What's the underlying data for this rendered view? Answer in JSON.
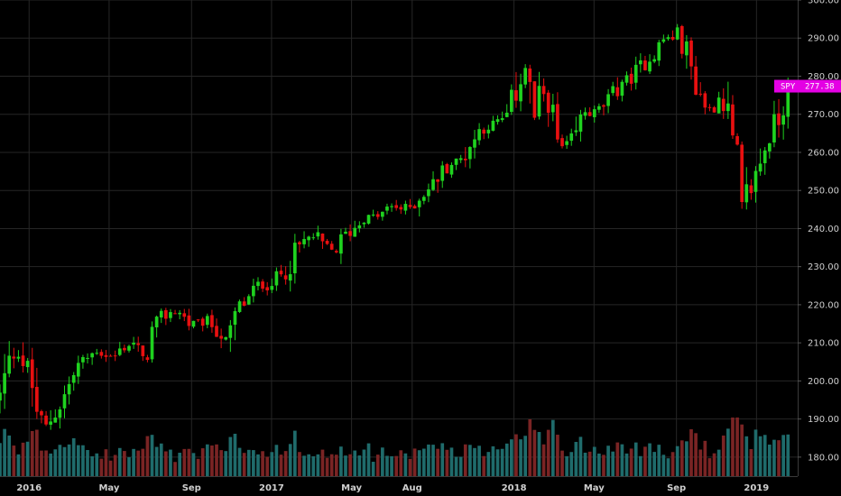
{
  "chart_data": {
    "type": "candlestick",
    "title": "",
    "ylabel": "",
    "xlabel": "",
    "ylim": [
      175,
      300
    ],
    "xlim": [
      2015.88,
      2019.17
    ],
    "grid": true,
    "y_ticks": [
      180,
      190,
      200,
      210,
      220,
      230,
      240,
      250,
      260,
      270,
      280,
      290,
      300
    ],
    "y_tick_labels": [
      "180.00",
      "190.00",
      "200.00",
      "210.00",
      "220.00",
      "230.00",
      "240.00",
      "250.00",
      "260.00",
      "270.00",
      "280.00",
      "290.00",
      "300.00"
    ],
    "x_ticks": [
      {
        "label": "2016",
        "x": 2016.0
      },
      {
        "label": "May",
        "x": 2016.33
      },
      {
        "label": "Sep",
        "x": 2016.67
      },
      {
        "label": "2017",
        "x": 2017.0
      },
      {
        "label": "May",
        "x": 2017.33
      },
      {
        "label": "Aug",
        "x": 2017.58
      },
      {
        "label": "2018",
        "x": 2018.0
      },
      {
        "label": "May",
        "x": 2018.33
      },
      {
        "label": "Sep",
        "x": 2018.67
      },
      {
        "label": "2019",
        "x": 2019.0
      }
    ],
    "price_tag": {
      "symbol": "SPY",
      "value": "277.38",
      "price": 277.38,
      "color": "#e400e4"
    },
    "up_color": "#1fd21f",
    "down_color": "#e81010",
    "volume_up_color": "#1f6b6b",
    "volume_down_color": "#7a2424",
    "volume_max_price_units": 26,
    "close_path": [
      [
        2015.88,
        196
      ],
      [
        2015.92,
        205
      ],
      [
        2015.95,
        209
      ],
      [
        2015.98,
        204
      ],
      [
        2016.0,
        202
      ],
      [
        2016.03,
        193
      ],
      [
        2016.06,
        187
      ],
      [
        2016.09,
        190
      ],
      [
        2016.12,
        193
      ],
      [
        2016.16,
        198
      ],
      [
        2016.2,
        204
      ],
      [
        2016.24,
        206
      ],
      [
        2016.28,
        208
      ],
      [
        2016.31,
        207
      ],
      [
        2016.35,
        206
      ],
      [
        2016.39,
        209
      ],
      [
        2016.43,
        210
      ],
      [
        2016.47,
        205
      ],
      [
        2016.5,
        212
      ],
      [
        2016.54,
        216
      ],
      [
        2016.58,
        218
      ],
      [
        2016.62,
        218
      ],
      [
        2016.66,
        215
      ],
      [
        2016.7,
        215
      ],
      [
        2016.74,
        216
      ],
      [
        2016.78,
        213
      ],
      [
        2016.82,
        210
      ],
      [
        2016.86,
        219
      ],
      [
        2016.9,
        221
      ],
      [
        2016.94,
        225
      ],
      [
        2016.98,
        225
      ],
      [
        2017.02,
        227
      ],
      [
        2017.06,
        229
      ],
      [
        2017.1,
        234
      ],
      [
        2017.14,
        237
      ],
      [
        2017.18,
        238
      ],
      [
        2017.22,
        235
      ],
      [
        2017.26,
        234
      ],
      [
        2017.3,
        238
      ],
      [
        2017.34,
        240
      ],
      [
        2017.38,
        243
      ],
      [
        2017.42,
        243
      ],
      [
        2017.46,
        244
      ],
      [
        2017.5,
        246
      ],
      [
        2017.54,
        245
      ],
      [
        2017.58,
        246
      ],
      [
        2017.62,
        249
      ],
      [
        2017.66,
        251
      ],
      [
        2017.7,
        255
      ],
      [
        2017.74,
        257
      ],
      [
        2017.78,
        258
      ],
      [
        2017.82,
        262
      ],
      [
        2017.86,
        266
      ],
      [
        2017.9,
        267
      ],
      [
        2017.94,
        268
      ],
      [
        2017.98,
        270
      ],
      [
        2018.02,
        279
      ],
      [
        2018.05,
        283
      ],
      [
        2018.08,
        268
      ],
      [
        2018.11,
        275
      ],
      [
        2018.14,
        276
      ],
      [
        2018.17,
        263
      ],
      [
        2018.2,
        261
      ],
      [
        2018.23,
        262
      ],
      [
        2018.26,
        265
      ],
      [
        2018.29,
        271
      ],
      [
        2018.32,
        270
      ],
      [
        2018.35,
        271
      ],
      [
        2018.38,
        273
      ],
      [
        2018.41,
        275
      ],
      [
        2018.44,
        279
      ],
      [
        2018.47,
        279
      ],
      [
        2018.5,
        281
      ],
      [
        2018.53,
        283
      ],
      [
        2018.56,
        285
      ],
      [
        2018.59,
        287
      ],
      [
        2018.62,
        290
      ],
      [
        2018.65,
        290
      ],
      [
        2018.68,
        292
      ],
      [
        2018.71,
        286
      ],
      [
        2018.74,
        280
      ],
      [
        2018.77,
        275
      ],
      [
        2018.8,
        271
      ],
      [
        2018.83,
        273
      ],
      [
        2018.86,
        276
      ],
      [
        2018.89,
        265
      ],
      [
        2018.92,
        255
      ],
      [
        2018.94,
        244
      ],
      [
        2018.96,
        249
      ],
      [
        2018.99,
        252
      ],
      [
        2019.02,
        259
      ],
      [
        2019.05,
        264
      ],
      [
        2019.08,
        268
      ],
      [
        2019.11,
        272
      ],
      [
        2019.13,
        277.38
      ]
    ]
  }
}
